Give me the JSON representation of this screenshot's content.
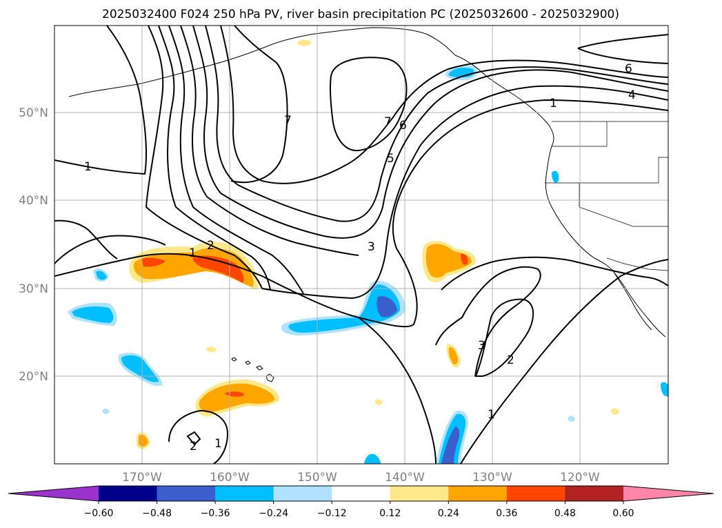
{
  "title": "2025032400 F024 250 hPa PV, river basin precipitation PC (2025032600 - 2025032900)",
  "map": {
    "lon_ticks": [
      "170°W",
      "160°W",
      "150°W",
      "140°W",
      "130°W",
      "120°W"
    ],
    "lat_ticks": [
      "50°N",
      "40°N",
      "30°N",
      "20°N"
    ],
    "grid": true,
    "contour_labels": [
      "1",
      "1",
      "1",
      "1",
      "1",
      "2",
      "2",
      "2",
      "3",
      "3",
      "4",
      "5",
      "6",
      "6",
      "7",
      "7"
    ]
  },
  "colorbar": {
    "tick_labels": [
      "−0.60",
      "−0.48",
      "−0.36",
      "−0.24",
      "−0.12",
      "0.12",
      "0.24",
      "0.36",
      "0.48",
      "0.60"
    ],
    "colors": [
      "#9a33cc",
      "#00008b",
      "#3a5fcd",
      "#00bfff",
      "#b0e2ff",
      "#ffffff",
      "#ffe88a",
      "#ffa500",
      "#ff4500",
      "#b22222",
      "#ff85a8"
    ],
    "extend": "both"
  },
  "colors": {
    "neg_strong": "#3a5fcd",
    "neg_mid": "#00bfff",
    "neg_weak": "#b0e2ff",
    "pos_weak": "#ffe88a",
    "pos_mid": "#ffa500",
    "pos_strong": "#ff4500"
  }
}
